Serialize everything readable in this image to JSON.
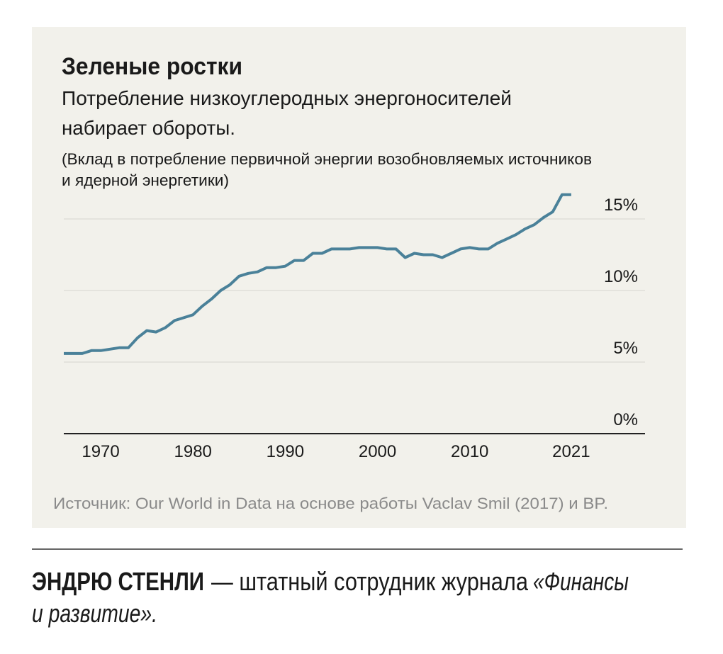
{
  "chart_data": {
    "type": "line",
    "title": "Зеленые ростки",
    "subtitle": [
      "Потребление низкоуглеродных энергоносителей",
      "набирает обороты."
    ],
    "note": [
      "(Вклад в потребление первичной энергии возобновляемых источников",
      "и ядерной энергетики)"
    ],
    "source": "Источник: Our World in Data на основе работы Vaclav Smil (2017) и BP.",
    "x": [
      1966,
      1967,
      1968,
      1969,
      1970,
      1971,
      1972,
      1973,
      1974,
      1975,
      1976,
      1977,
      1978,
      1979,
      1980,
      1981,
      1982,
      1983,
      1984,
      1985,
      1986,
      1987,
      1988,
      1989,
      1990,
      1991,
      1992,
      1993,
      1994,
      1995,
      1996,
      1997,
      1998,
      1999,
      2000,
      2001,
      2002,
      2003,
      2004,
      2005,
      2006,
      2007,
      2008,
      2009,
      2010,
      2011,
      2012,
      2013,
      2014,
      2015,
      2016,
      2017,
      2018,
      2019,
      2020,
      2021
    ],
    "values": [
      5.6,
      5.6,
      5.6,
      5.8,
      5.8,
      5.9,
      6.0,
      6.0,
      6.7,
      7.2,
      7.1,
      7.4,
      7.9,
      8.1,
      8.3,
      8.9,
      9.4,
      10.0,
      10.4,
      11.0,
      11.2,
      11.3,
      11.6,
      11.6,
      11.7,
      12.1,
      12.1,
      12.6,
      12.6,
      12.9,
      12.9,
      12.9,
      13.0,
      13.0,
      13.0,
      12.9,
      12.9,
      12.3,
      12.6,
      12.5,
      12.5,
      12.3,
      12.6,
      12.9,
      13.0,
      12.9,
      12.9,
      13.3,
      13.6,
      13.9,
      14.3,
      14.6,
      15.1,
      15.5,
      16.7,
      16.7
    ],
    "color": "#4a8199",
    "xlim": [
      1966,
      2029
    ],
    "xticks": [
      1970,
      1980,
      1990,
      2000,
      2010,
      2021
    ],
    "ylim": [
      0,
      17
    ],
    "yticks": [
      {
        "value": 0,
        "label": "0%"
      },
      {
        "value": 5,
        "label": "5%"
      },
      {
        "value": 10,
        "label": "10%"
      },
      {
        "value": 15,
        "label": "15%"
      }
    ],
    "grid": true
  },
  "footer": {
    "author": "ЭНДРЮ СТЕНЛИ",
    "role": "— штатный сотрудник журнала",
    "journal": [
      "«Финансы",
      "и развитие»."
    ]
  }
}
